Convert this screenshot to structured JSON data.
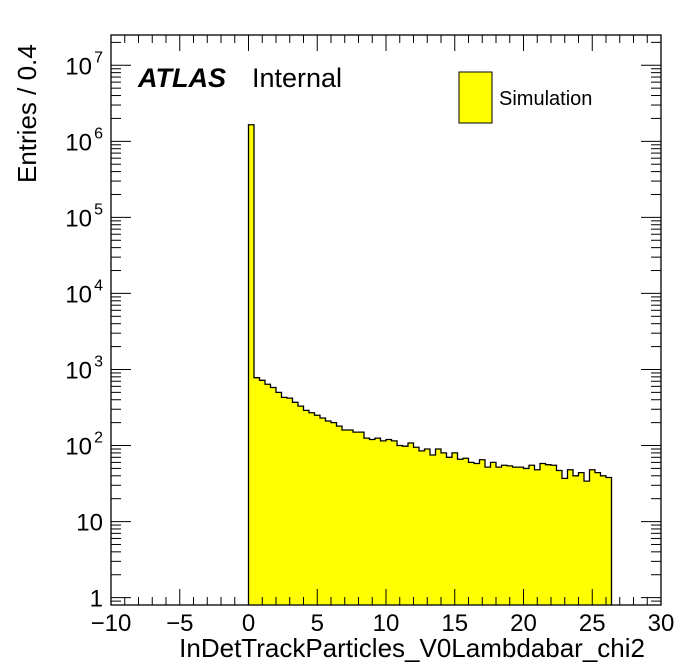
{
  "chart_data": {
    "type": "bar",
    "histogram": true,
    "xlabel": "InDetTrackParticles_V0Lambdabar_chi2",
    "ylabel": "Entries / 0.4",
    "xlim": [
      -10,
      30
    ],
    "ylim": [
      0.8,
      25000000
    ],
    "yscale": "log",
    "bin_width": 0.4,
    "bin_start": 0,
    "x_ticks": [
      "−10",
      "−5",
      "0",
      "5",
      "10",
      "15",
      "20",
      "25",
      "30"
    ],
    "y_ticks": [
      {
        "value": 1,
        "base": "1",
        "exp": ""
      },
      {
        "value": 10,
        "base": "10",
        "exp": ""
      },
      {
        "value": 100,
        "base": "10",
        "exp": "2"
      },
      {
        "value": 1000,
        "base": "10",
        "exp": "3"
      },
      {
        "value": 10000,
        "base": "10",
        "exp": "4"
      },
      {
        "value": 100000,
        "base": "10",
        "exp": "5"
      },
      {
        "value": 1000000,
        "base": "10",
        "exp": "6"
      },
      {
        "value": 10000000,
        "base": "10",
        "exp": "7"
      }
    ],
    "series": [
      {
        "name": "Simulation",
        "color": "#ffff00",
        "values": [
          1650000,
          780,
          720,
          640,
          580,
          500,
          430,
          420,
          370,
          330,
          290,
          270,
          250,
          230,
          210,
          200,
          180,
          160,
          160,
          150,
          150,
          125,
          120,
          125,
          115,
          120,
          115,
          100,
          98,
          108,
          95,
          85,
          90,
          75,
          90,
          80,
          70,
          80,
          66,
          68,
          60,
          58,
          65,
          52,
          60,
          52,
          55,
          54,
          52,
          52,
          50,
          55,
          48,
          58,
          56,
          55,
          47,
          37,
          48,
          40,
          44,
          34,
          48,
          44,
          40,
          38
        ]
      }
    ],
    "legend_position": "top-right",
    "grid": false
  },
  "labels": {
    "experiment": "ATLAS",
    "status": "Internal"
  }
}
